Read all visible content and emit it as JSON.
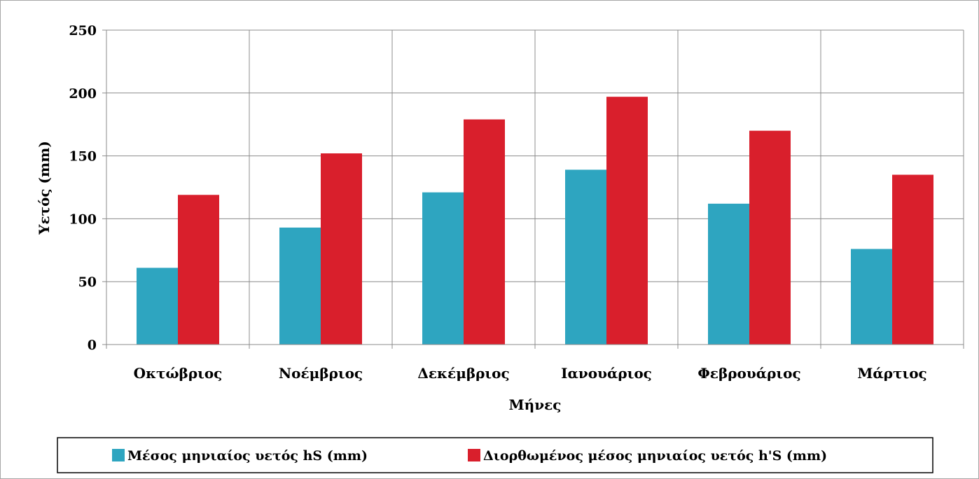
{
  "chart_data": {
    "type": "bar",
    "categories": [
      "Οκτώβριος",
      "Νοέμβριος",
      "Δεκέμβριος",
      "Ιανουάριος",
      "Φεβρουάριος",
      "Μάρτιος"
    ],
    "series": [
      {
        "name": "Μέσος μηνιαίος υετός hS (mm)",
        "color": "#2ea5c0",
        "values": [
          61,
          93,
          121,
          139,
          112,
          76
        ]
      },
      {
        "name": "Διορθωμένος μέσος μηνιαίος υετός h'S (mm)",
        "color": "#d91f2c",
        "values": [
          119,
          152,
          179,
          197,
          170,
          135
        ]
      }
    ],
    "xlabel": "Μήνες",
    "ylabel": "Υετός (mm)",
    "ylim": [
      0,
      250
    ],
    "yticks": [
      0,
      50,
      100,
      150,
      200,
      250
    ],
    "grid": true,
    "legend_position": "bottom"
  }
}
